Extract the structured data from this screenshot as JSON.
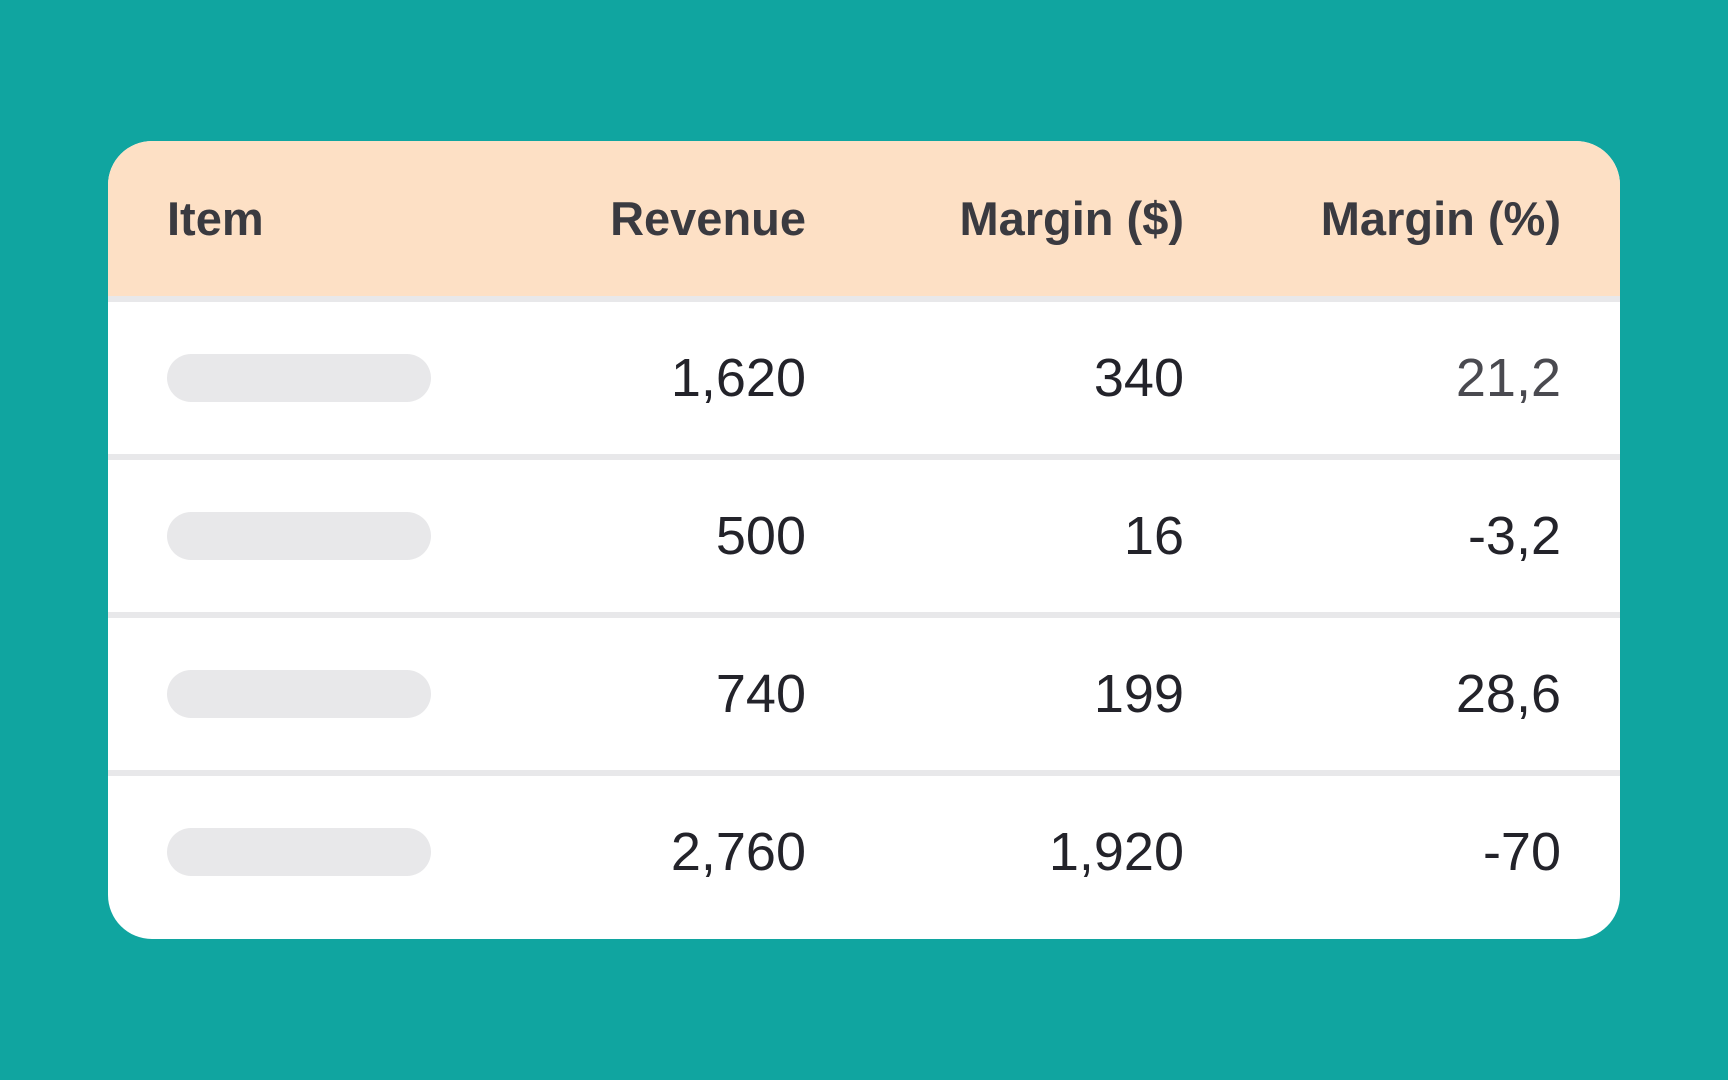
{
  "table": {
    "headers": {
      "item": "Item",
      "revenue": "Revenue",
      "margin_dollar": "Margin ($)",
      "margin_percent": "Margin (%)"
    },
    "rows": [
      {
        "revenue": "1,620",
        "margin_dollar": "340",
        "margin_percent": "21,2"
      },
      {
        "revenue": "500",
        "margin_dollar": "16",
        "margin_percent": "-3,2"
      },
      {
        "revenue": "740",
        "margin_dollar": "199",
        "margin_percent": "28,6"
      },
      {
        "revenue": "2,760",
        "margin_dollar": "1,920",
        "margin_percent": "-70"
      }
    ]
  },
  "colors": {
    "background": "#10a5a0",
    "header_background": "#fde0c5",
    "placeholder": "#e8e8ea"
  }
}
